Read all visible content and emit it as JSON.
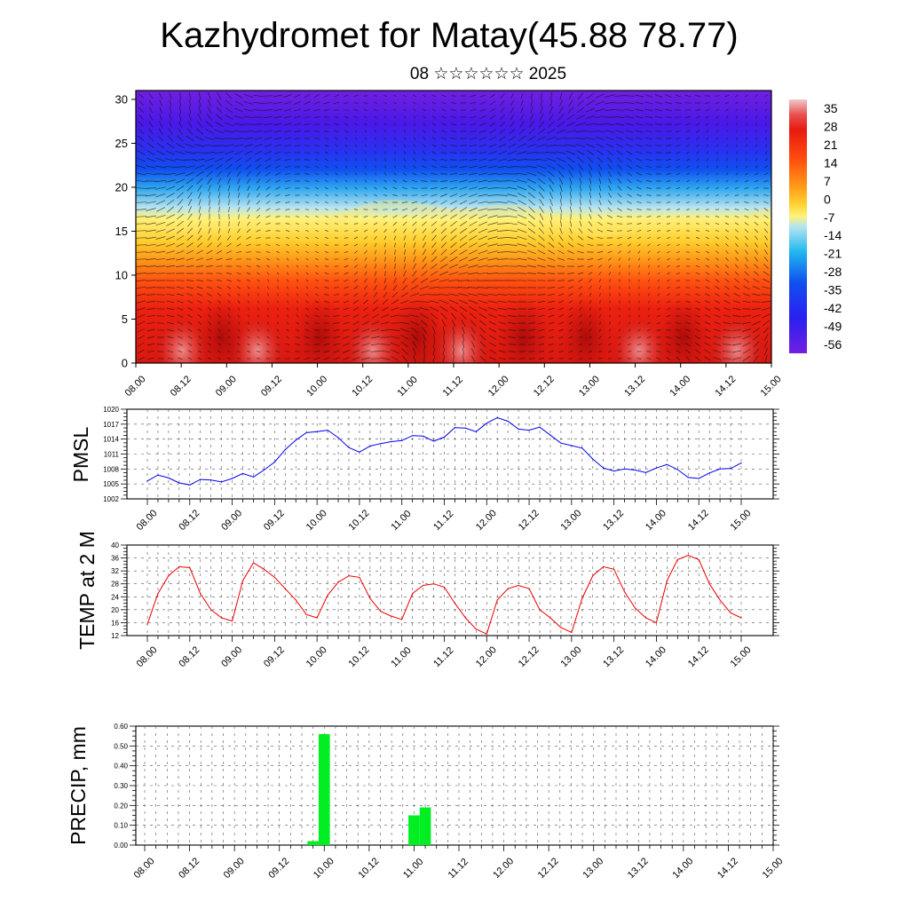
{
  "header": {
    "title": "Kazhydromet for Matay(45.88 78.77)",
    "subtitle": "08 ☆☆☆☆☆☆ 2025"
  },
  "time_labels": [
    "08.00",
    "08.12",
    "09.00",
    "09.12",
    "10.00",
    "10.12",
    "11.00",
    "11.12",
    "12.00",
    "12.12",
    "13.00",
    "13.12",
    "14.00",
    "14.12",
    "15.00"
  ],
  "chart_data": [
    {
      "type": "heatmap",
      "name": "cross-section",
      "y_ticks": [
        0,
        5,
        10,
        15,
        20,
        25,
        30
      ],
      "ylim": [
        0,
        31
      ],
      "colorbar": {
        "labels": [
          "35",
          "28",
          "21",
          "14",
          "7",
          "0",
          "-7",
          "-14",
          "-21",
          "-28",
          "-35",
          "-42",
          "-49",
          "-56"
        ],
        "range": [
          -63,
          39
        ],
        "colors": {
          "top": "#f0c8c8",
          "red": "#e81a10",
          "orange": "#ff9010",
          "yellow": "#fff070",
          "light_blue": "#a8dcf0",
          "cyan": "#20b8f0",
          "blue": "#1040f0",
          "purple": "#7020e0"
        }
      }
    },
    {
      "type": "line",
      "ylabel": "PMSL",
      "ylim": [
        1002,
        1020
      ],
      "y_ticks": [
        "1002",
        "1005",
        "1008",
        "1011",
        "1014",
        "1017",
        "1020"
      ],
      "color": "#0000ee",
      "values": [
        1005.6,
        1006.8,
        1006.2,
        1005.2,
        1004.8,
        1005.9,
        1005.8,
        1005.4,
        1006.1,
        1007.1,
        1006.4,
        1007.8,
        1009.4,
        1011.9,
        1013.8,
        1015.3,
        1015.5,
        1015.8,
        1014.3,
        1012.3,
        1011.4,
        1012.6,
        1013.1,
        1013.5,
        1013.7,
        1014.7,
        1014.6,
        1013.6,
        1014.4,
        1016.3,
        1016.2,
        1015.5,
        1017.2,
        1018.3,
        1017.6,
        1016.0,
        1015.8,
        1016.4,
        1014.8,
        1013.2,
        1012.7,
        1012.2,
        1010.0,
        1008.2,
        1007.6,
        1008.0,
        1007.8,
        1007.3,
        1008.2,
        1008.9,
        1007.9,
        1006.3,
        1006.1,
        1007.2,
        1008.0,
        1008.1,
        1009.2
      ]
    },
    {
      "type": "line",
      "ylabel": "TEMP at 2 M",
      "ylim": [
        12,
        40
      ],
      "y_ticks": [
        "12",
        "16",
        "20",
        "24",
        "28",
        "32",
        "36",
        "40"
      ],
      "color": "#ee0000",
      "values": [
        15.5,
        25.0,
        30.5,
        33.3,
        33.0,
        25.0,
        20.0,
        17.5,
        16.5,
        29.0,
        34.5,
        32.5,
        30.0,
        26.5,
        23.0,
        18.5,
        17.5,
        24.5,
        28.5,
        30.5,
        30.0,
        23.5,
        19.5,
        18.0,
        17.0,
        25.0,
        27.5,
        28.0,
        27.0,
        22.0,
        17.5,
        14.0,
        12.5,
        23.0,
        26.5,
        27.5,
        26.5,
        20.0,
        17.5,
        14.5,
        13.0,
        23.5,
        30.5,
        33.3,
        32.5,
        25.5,
        20.5,
        17.5,
        16.0,
        29.0,
        35.5,
        36.8,
        35.5,
        28.0,
        23.0,
        19.0,
        17.5
      ]
    },
    {
      "type": "bar",
      "ylabel": "PRECIP, mm",
      "ylim": [
        0,
        0.6
      ],
      "y_ticks": [
        "0.00",
        "0.10",
        "0.20",
        "0.30",
        "0.40",
        "0.50",
        "0.60"
      ],
      "color": "#00ee22",
      "values": [
        0,
        0,
        0,
        0,
        0,
        0,
        0,
        0,
        0,
        0,
        0,
        0,
        0,
        0,
        0,
        0.02,
        0.56,
        0,
        0,
        0,
        0,
        0,
        0,
        0,
        0.15,
        0.19,
        0,
        0,
        0,
        0,
        0,
        0,
        0,
        0,
        0,
        0,
        0,
        0,
        0,
        0,
        0,
        0,
        0,
        0,
        0,
        0,
        0,
        0,
        0,
        0,
        0,
        0,
        0,
        0,
        0,
        0,
        0
      ]
    }
  ]
}
